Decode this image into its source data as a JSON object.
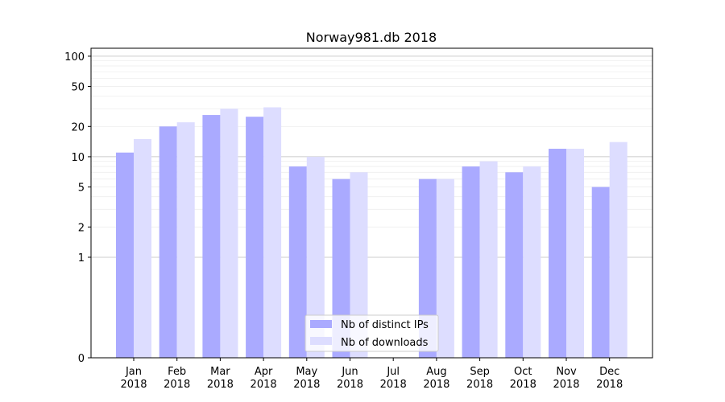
{
  "chart_data": {
    "type": "bar",
    "title": "Norway981.db 2018",
    "xlabel": "",
    "ylabel": "",
    "y_scale": "symlog",
    "ylim": [
      0,
      120
    ],
    "grid": true,
    "legend_position": "lower center",
    "categories": [
      [
        "Jan",
        "2018"
      ],
      [
        "Feb",
        "2018"
      ],
      [
        "Mar",
        "2018"
      ],
      [
        "Apr",
        "2018"
      ],
      [
        "May",
        "2018"
      ],
      [
        "Jun",
        "2018"
      ],
      [
        "Jul",
        "2018"
      ],
      [
        "Aug",
        "2018"
      ],
      [
        "Sep",
        "2018"
      ],
      [
        "Oct",
        "2018"
      ],
      [
        "Nov",
        "2018"
      ],
      [
        "Dec",
        "2018"
      ]
    ],
    "y_ticks": [
      {
        "value": 0,
        "label": "0"
      },
      {
        "value": 1,
        "label": "1"
      },
      {
        "value": 2,
        "label": "2"
      },
      {
        "value": 5,
        "label": "5"
      },
      {
        "value": 10,
        "label": "10"
      },
      {
        "value": 20,
        "label": "20"
      },
      {
        "value": 50,
        "label": "50"
      },
      {
        "value": 100,
        "label": "100"
      }
    ],
    "series": [
      {
        "name": "Nb of distinct IPs",
        "color": "#aaaaff",
        "values": [
          11,
          20,
          26,
          25,
          8,
          6,
          0,
          6,
          8,
          7,
          12,
          5
        ]
      },
      {
        "name": "Nb of downloads",
        "color": "#ddddff",
        "values": [
          15,
          22,
          30,
          31,
          10,
          7,
          0,
          6,
          9,
          8,
          12,
          14
        ]
      }
    ]
  }
}
